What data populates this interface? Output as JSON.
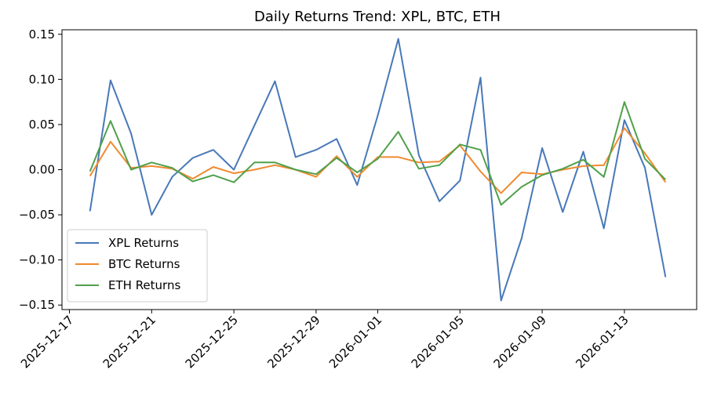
{
  "chart_data": {
    "type": "line",
    "title": "Daily Returns Trend: XPL, BTC, ETH",
    "xlabel": "",
    "ylabel": "",
    "x_start": "2025-12-18",
    "x": [
      "2025-12-18",
      "2025-12-19",
      "2025-12-20",
      "2025-12-21",
      "2025-12-22",
      "2025-12-23",
      "2025-12-24",
      "2025-12-25",
      "2025-12-26",
      "2025-12-27",
      "2025-12-28",
      "2025-12-29",
      "2025-12-30",
      "2025-12-31",
      "2026-01-01",
      "2026-01-02",
      "2026-01-03",
      "2026-01-04",
      "2026-01-05",
      "2026-01-06",
      "2026-01-07",
      "2026-01-08",
      "2026-01-09",
      "2026-01-10",
      "2026-01-11",
      "2026-01-12",
      "2026-01-13",
      "2026-01-14",
      "2026-01-15"
    ],
    "xticks": [
      "2025-12-17",
      "2025-12-21",
      "2025-12-25",
      "2025-12-29",
      "2026-01-01",
      "2026-01-05",
      "2026-01-09",
      "2026-01-13"
    ],
    "ylim": [
      -0.155,
      0.155
    ],
    "yticks": [
      "0.15",
      "0.10",
      "0.05",
      "0.00",
      "−0.05",
      "−0.10",
      "−0.15"
    ],
    "legend_position": "lower-left",
    "grid": false,
    "series": [
      {
        "name": "XPL Returns",
        "color": "#4878b8",
        "values": [
          -0.046,
          0.099,
          0.04,
          -0.05,
          -0.008,
          0.013,
          0.022,
          0.0,
          0.049,
          0.098,
          0.014,
          0.022,
          0.034,
          -0.017,
          0.06,
          0.145,
          0.016,
          -0.035,
          -0.012,
          0.102,
          -0.145,
          -0.076,
          0.024,
          -0.047,
          0.02,
          -0.065,
          0.055,
          0.002,
          -0.119
        ]
      },
      {
        "name": "BTC Returns",
        "color": "#f08a30",
        "values": [
          -0.007,
          0.031,
          0.002,
          0.004,
          0.001,
          -0.01,
          0.003,
          -0.004,
          0.0,
          0.005,
          0.0,
          -0.008,
          0.015,
          -0.008,
          0.014,
          0.014,
          0.008,
          0.009,
          0.027,
          -0.002,
          -0.026,
          -0.003,
          -0.005,
          0.0,
          0.004,
          0.005,
          0.046,
          0.018,
          -0.014
        ]
      },
      {
        "name": "ETH Returns",
        "color": "#50a04a",
        "values": [
          -0.002,
          0.054,
          0.0,
          0.008,
          0.002,
          -0.013,
          -0.006,
          -0.014,
          0.008,
          0.008,
          0.0,
          -0.005,
          0.013,
          -0.003,
          0.012,
          0.042,
          0.001,
          0.005,
          0.028,
          0.022,
          -0.039,
          -0.019,
          -0.006,
          0.001,
          0.011,
          -0.008,
          0.075,
          0.012,
          -0.011
        ]
      }
    ]
  }
}
